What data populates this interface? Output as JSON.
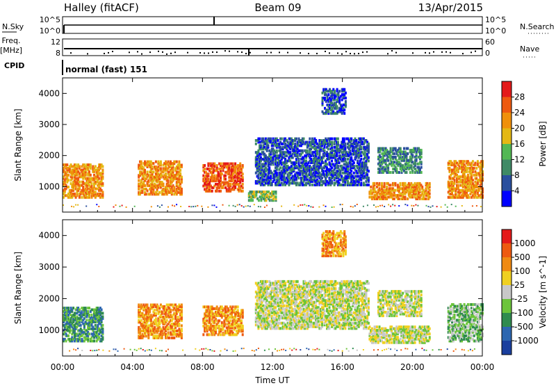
{
  "header": {
    "station": "Halley (fitACF)",
    "beam": "Beam 09",
    "date": "13/Apr/2015"
  },
  "strip_labels": {
    "nsky": "N.Sky",
    "nsearch": "N.Search",
    "nsky_ticks": [
      "10^5",
      "10^0"
    ],
    "nsearch_ticks": [
      "10^5",
      "10^0"
    ],
    "freq_label_1": "Freq.",
    "freq_label_2": "[MHz]",
    "freq_ticks": [
      "12",
      "8"
    ],
    "nave": "Nave",
    "nave_ticks": [
      "60",
      "0"
    ],
    "cpid": "CPID",
    "mode": "normal (fast) 151"
  },
  "colors": {
    "power_scale": [
      "#0000ff",
      "#2a4f9e",
      "#3f8a66",
      "#53b854",
      "#e4b814",
      "#f0900b",
      "#ee5a10",
      "#e41a1a"
    ],
    "velocity_scale": [
      "#1a3f9e",
      "#2d67b0",
      "#2f8b4f",
      "#6cc43b",
      "#c8c8c8",
      "#f0d020",
      "#f08a12",
      "#ee5a10",
      "#e41a1a"
    ]
  },
  "chart_data": [
    {
      "type": "heatmap",
      "name": "power",
      "xlabel": "",
      "ylabel": "Slant Range [km]",
      "colorbar_label": "Power [dB]",
      "colorbar_ticks": [
        "28",
        "24",
        "20",
        "16",
        "12",
        "8",
        "4"
      ],
      "x_ticks": [
        "00:00",
        "04:00",
        "08:00",
        "12:00",
        "16:00",
        "20:00",
        "00:00"
      ],
      "y_ticks": [
        "4000",
        "3000",
        "2000",
        "1000"
      ],
      "xlim": [
        0,
        24
      ],
      "ylim": [
        180,
        4500
      ],
      "echo_regions": [
        {
          "t0": 0.0,
          "t1": 2.3,
          "r0": 700,
          "r1": 1800,
          "level": 5
        },
        {
          "t0": 4.3,
          "t1": 6.8,
          "r0": 800,
          "r1": 1900,
          "level": 5
        },
        {
          "t0": 8.0,
          "t1": 10.3,
          "r0": 900,
          "r1": 1800,
          "level": 6
        },
        {
          "t0": 10.6,
          "t1": 12.2,
          "r0": 600,
          "r1": 900,
          "level": 3
        },
        {
          "t0": 11.0,
          "t1": 17.5,
          "r0": 1100,
          "r1": 2600,
          "level": 1
        },
        {
          "t0": 14.8,
          "t1": 16.2,
          "r0": 3400,
          "r1": 4200,
          "level": 1
        },
        {
          "t0": 17.5,
          "t1": 21.0,
          "r0": 650,
          "r1": 1200,
          "level": 5
        },
        {
          "t0": 18.0,
          "t1": 20.5,
          "r0": 1500,
          "r1": 2300,
          "level": 2
        },
        {
          "t0": 22.0,
          "t1": 24.0,
          "r0": 700,
          "r1": 1900,
          "level": 5
        }
      ]
    },
    {
      "type": "heatmap",
      "name": "velocity",
      "xlabel": "Time UT",
      "ylabel": "Slant Range [km]",
      "colorbar_label": "Velocity [m s^-1]",
      "colorbar_ticks": [
        "1000",
        "500",
        "100",
        "25",
        "-25",
        "-100",
        "-500",
        "-1000"
      ],
      "x_ticks": [
        "00:00",
        "04:00",
        "08:00",
        "12:00",
        "16:00",
        "20:00",
        "00:00"
      ],
      "y_ticks": [
        "4000",
        "3000",
        "2000",
        "1000"
      ],
      "xlim": [
        0,
        24
      ],
      "ylim": [
        180,
        4500
      ],
      "echo_regions": [
        {
          "t0": 0.0,
          "t1": 2.3,
          "r0": 700,
          "r1": 1800,
          "level": 2
        },
        {
          "t0": 4.3,
          "t1": 6.8,
          "r0": 800,
          "r1": 1900,
          "level": 6
        },
        {
          "t0": 8.0,
          "t1": 10.3,
          "r0": 900,
          "r1": 1800,
          "level": 6
        },
        {
          "t0": 11.0,
          "t1": 17.5,
          "r0": 1100,
          "r1": 2600,
          "level": 4
        },
        {
          "t0": 14.8,
          "t1": 16.2,
          "r0": 3400,
          "r1": 4200,
          "level": 6
        },
        {
          "t0": 17.5,
          "t1": 21.0,
          "r0": 650,
          "r1": 1200,
          "level": 4
        },
        {
          "t0": 18.0,
          "t1": 20.5,
          "r0": 1500,
          "r1": 2300,
          "level": 4
        },
        {
          "t0": 22.0,
          "t1": 24.0,
          "r0": 700,
          "r1": 1900,
          "level": 3
        }
      ]
    }
  ]
}
